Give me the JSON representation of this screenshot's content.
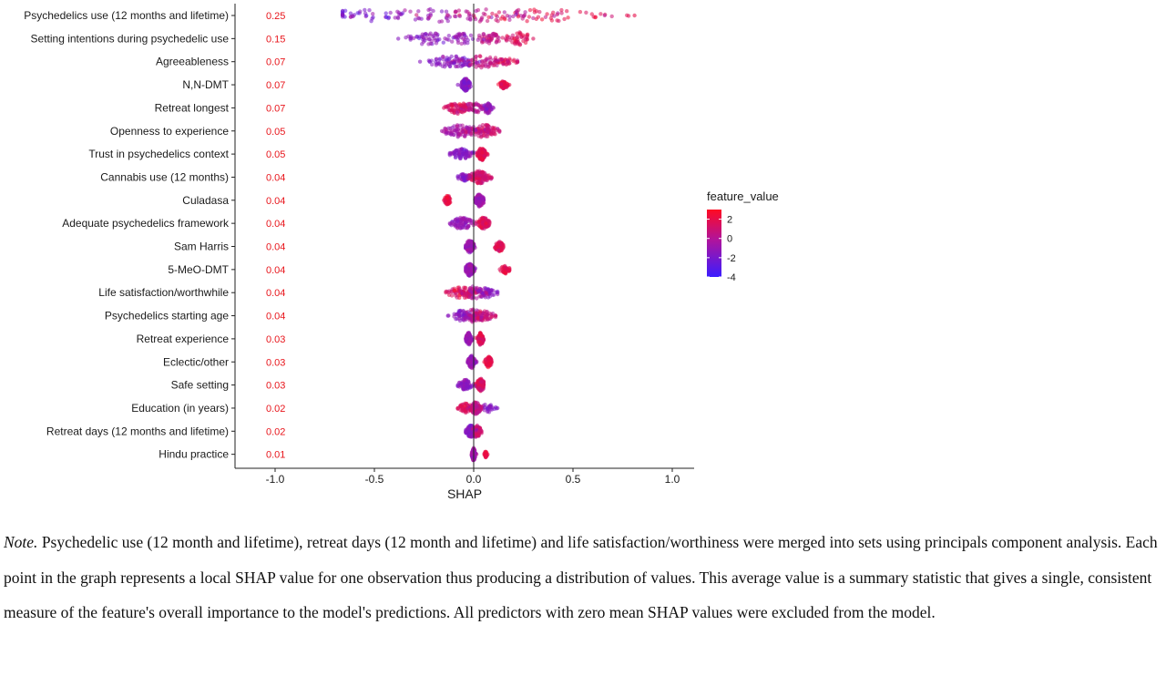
{
  "chart_data": {
    "type": "scatter",
    "subtype": "shap-summary",
    "xlabel": "SHAP",
    "xlim": [
      -1.2,
      1.1
    ],
    "x_ticks": [
      -1.0,
      -0.5,
      0.0,
      0.5,
      1.0
    ],
    "x_tick_labels": [
      "-1.0",
      "-0.5",
      "0.0",
      "0.5",
      "1.0"
    ],
    "features": [
      {
        "name": "Psychedelics use (12 months and lifetime)",
        "mean_label": "0.25",
        "mean_abs_shap": 0.25,
        "min": -0.66,
        "max": 0.81,
        "lobes": [
          [
            -0.55,
            0.11,
            -2.2,
            1.0
          ],
          [
            -0.2,
            0.2,
            -1.0,
            1.0
          ],
          [
            0.1,
            0.2,
            0.3,
            1.0
          ],
          [
            0.35,
            0.18,
            2.0,
            1.0
          ]
        ]
      },
      {
        "name": "Setting intentions during psychedelic use",
        "mean_label": "0.15",
        "mean_abs_shap": 0.15,
        "min": -0.38,
        "max": 0.3,
        "lobes": [
          [
            -0.22,
            0.06,
            -1.5,
            1.0
          ],
          [
            -0.06,
            0.04,
            -1.0,
            0.8
          ],
          [
            0.08,
            0.04,
            0.5,
            0.9
          ],
          [
            0.23,
            0.04,
            1.5,
            1.0
          ]
        ]
      },
      {
        "name": "Agreeableness",
        "mean_label": "0.07",
        "mean_abs_shap": 0.07,
        "min": -0.27,
        "max": 0.22,
        "lobes": [
          [
            -0.1,
            0.07,
            -1.5,
            1.0
          ],
          [
            0.05,
            0.06,
            0.5,
            1.0
          ],
          [
            0.16,
            0.03,
            1.5,
            0.5
          ]
        ]
      },
      {
        "name": "N,N-DMT",
        "mean_label": "0.07",
        "mean_abs_shap": 0.07,
        "min": -0.08,
        "max": 0.18,
        "lobes": [
          [
            -0.04,
            0.012,
            -1.5,
            1.7
          ],
          [
            0.15,
            0.012,
            2.0,
            0.6
          ]
        ]
      },
      {
        "name": "Retreat longest",
        "mean_label": "0.07",
        "mean_abs_shap": 0.07,
        "min": -0.15,
        "max": 0.1,
        "lobes": [
          [
            -0.08,
            0.03,
            1.5,
            1.0
          ],
          [
            0.0,
            0.03,
            0.3,
            0.8
          ],
          [
            0.07,
            0.012,
            -1.0,
            0.9
          ]
        ]
      },
      {
        "name": "Openness to experience",
        "mean_label": "0.05",
        "mean_abs_shap": 0.05,
        "min": -0.16,
        "max": 0.13,
        "lobes": [
          [
            -0.06,
            0.05,
            -0.5,
            1.0
          ],
          [
            0.05,
            0.04,
            1.0,
            1.0
          ]
        ]
      },
      {
        "name": "Trust in psychedelics context",
        "mean_label": "0.05",
        "mean_abs_shap": 0.05,
        "min": -0.12,
        "max": 0.07,
        "lobes": [
          [
            -0.06,
            0.03,
            -1.5,
            0.8
          ],
          [
            0.04,
            0.012,
            1.8,
            1.2
          ]
        ]
      },
      {
        "name": "Cannabis use (12 months)",
        "mean_label": "0.04",
        "mean_abs_shap": 0.04,
        "min": -0.08,
        "max": 0.09,
        "lobes": [
          [
            -0.05,
            0.015,
            -1.5,
            0.6
          ],
          [
            0.03,
            0.03,
            1.2,
            1.3
          ]
        ]
      },
      {
        "name": "Culadasa",
        "mean_label": "0.04",
        "mean_abs_shap": 0.04,
        "min": -0.15,
        "max": 0.05,
        "lobes": [
          [
            -0.13,
            0.01,
            2.0,
            0.7
          ],
          [
            0.03,
            0.012,
            -0.8,
            1.4
          ]
        ]
      },
      {
        "name": "Adequate psychedelics framework",
        "mean_label": "0.04",
        "mean_abs_shap": 0.04,
        "min": -0.12,
        "max": 0.08,
        "lobes": [
          [
            -0.06,
            0.03,
            -1.0,
            1.0
          ],
          [
            0.05,
            0.015,
            1.5,
            1.0
          ]
        ]
      },
      {
        "name": "Sam Harris",
        "mean_label": "0.04",
        "mean_abs_shap": 0.04,
        "min": -0.04,
        "max": 0.15,
        "lobes": [
          [
            -0.02,
            0.012,
            -1.0,
            1.6
          ],
          [
            0.13,
            0.012,
            1.8,
            0.8
          ]
        ]
      },
      {
        "name": "5-MeO-DMT",
        "mean_label": "0.04",
        "mean_abs_shap": 0.04,
        "min": -0.04,
        "max": 0.18,
        "lobes": [
          [
            -0.02,
            0.012,
            -1.0,
            1.7
          ],
          [
            0.16,
            0.012,
            2.0,
            0.6
          ]
        ]
      },
      {
        "name": "Life satisfaction/worthwhile",
        "mean_label": "0.04",
        "mean_abs_shap": 0.04,
        "min": -0.14,
        "max": 0.12,
        "lobes": [
          [
            -0.06,
            0.04,
            1.5,
            0.9
          ],
          [
            0.0,
            0.03,
            0.0,
            1.0
          ],
          [
            0.06,
            0.03,
            -1.5,
            0.8
          ]
        ]
      },
      {
        "name": "Psychedelics starting age",
        "mean_label": "0.04",
        "mean_abs_shap": 0.04,
        "min": -0.13,
        "max": 0.11,
        "lobes": [
          [
            -0.06,
            0.03,
            -1.5,
            0.8
          ],
          [
            0.0,
            0.03,
            0.0,
            1.0
          ],
          [
            0.05,
            0.03,
            1.0,
            0.8
          ]
        ]
      },
      {
        "name": "Retreat experience",
        "mean_label": "0.03",
        "mean_abs_shap": 0.03,
        "min": -0.04,
        "max": 0.05,
        "lobes": [
          [
            -0.025,
            0.008,
            -1.0,
            1.3
          ],
          [
            0.035,
            0.008,
            1.5,
            1.1
          ]
        ]
      },
      {
        "name": "Eclectic/other",
        "mean_label": "0.03",
        "mean_abs_shap": 0.03,
        "min": -0.03,
        "max": 0.09,
        "lobes": [
          [
            -0.01,
            0.01,
            -1.0,
            1.5
          ],
          [
            0.075,
            0.01,
            2.0,
            0.9
          ]
        ]
      },
      {
        "name": "Safe setting",
        "mean_label": "0.03",
        "mean_abs_shap": 0.03,
        "min": -0.08,
        "max": 0.05,
        "lobes": [
          [
            -0.04,
            0.02,
            -1.5,
            0.8
          ],
          [
            0.035,
            0.012,
            1.5,
            1.2
          ]
        ]
      },
      {
        "name": "Education (in years)",
        "mean_label": "0.02",
        "mean_abs_shap": 0.02,
        "min": -0.08,
        "max": 0.12,
        "lobes": [
          [
            -0.04,
            0.02,
            1.5,
            0.7
          ],
          [
            0.01,
            0.015,
            0.5,
            1.5
          ],
          [
            0.07,
            0.02,
            -1.5,
            0.6
          ]
        ]
      },
      {
        "name": "Retreat days (12 months and lifetime)",
        "mean_label": "0.02",
        "mean_abs_shap": 0.02,
        "min": -0.04,
        "max": 0.04,
        "lobes": [
          [
            -0.015,
            0.012,
            -1.5,
            1.2
          ],
          [
            0.015,
            0.012,
            1.0,
            1.2
          ]
        ]
      },
      {
        "name": "Hindu practice",
        "mean_label": "0.01",
        "mean_abs_shap": 0.01,
        "min": -0.01,
        "max": 0.07,
        "lobes": [
          [
            0.0,
            0.005,
            -0.5,
            1.5
          ],
          [
            0.06,
            0.004,
            2.0,
            0.4
          ]
        ]
      }
    ],
    "legend": {
      "title": "feature_value",
      "placement": "right",
      "ticks": [
        2,
        0,
        -2,
        -4
      ],
      "tick_labels": [
        "2",
        "0",
        "-2",
        "-4"
      ],
      "range": [
        -4,
        3
      ],
      "color_low": "#3b1cff",
      "color_mid": "#b0149c",
      "color_high": "#ff0a22"
    },
    "mean_label_color": "#e8161c",
    "zero_line": true,
    "grid": false
  },
  "note": {
    "lead": "Note.",
    "text": " Psychedelic use (12 month and lifetime), retreat days (12 month and lifetime) and life satisfaction/worthiness were merged into sets using principals component analysis. Each point in the graph represents a local SHAP value for one observation thus producing a distribution of values. This average value is a summary statistic that gives a single, consistent measure of the feature's overall importance to the model's predictions. All predictors with zero mean SHAP values were excluded from the model."
  }
}
